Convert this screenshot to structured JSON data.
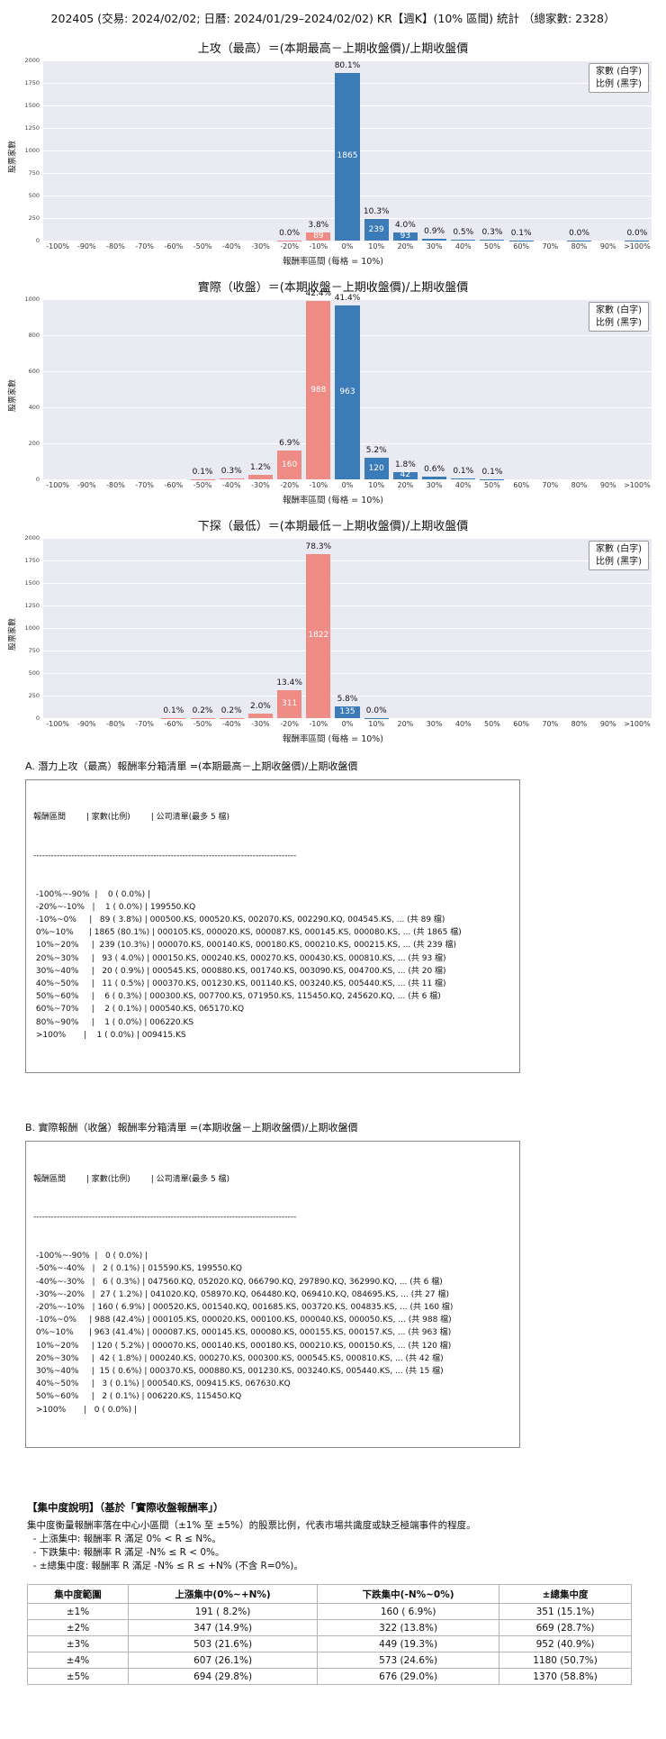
{
  "page_title": "202405 (交易: 2024/02/02; 日曆: 2024/01/29–2024/02/02) KR【週K】(10% 區間) 統計 （總家數: 2328）",
  "colors": {
    "bar_negative": "#ee8b84",
    "bar_positive": "#3b7cb8",
    "plot_bg": "#eaeaf2",
    "grid": "#ffffff"
  },
  "chart_data": [
    {
      "type": "bar",
      "title": "上攻（最高）＝(本期最高－上期收盤價)/上期收盤價",
      "ylabel": "股票家數",
      "xlabel": "報酬率區間 (每格 = 10%)",
      "legend": [
        "家數 (白字)",
        "比例 (黑字)"
      ],
      "ymax": 2000,
      "yticks": [
        0,
        250,
        500,
        750,
        1000,
        1250,
        1500,
        1750,
        2000
      ],
      "x_labels": [
        "-100%",
        "-90%",
        "-80%",
        "-70%",
        "-60%",
        "-50%",
        "-40%",
        "-30%",
        "-20%",
        "-10%",
        "0%",
        "10%",
        "20%",
        "30%",
        "40%",
        "50%",
        "60%",
        "70%",
        "80%",
        "90%",
        ">100%"
      ],
      "counts": [
        0,
        0,
        0,
        0,
        0,
        0,
        0,
        0,
        1,
        89,
        1865,
        239,
        93,
        20,
        11,
        6,
        2,
        0,
        1,
        0,
        1
      ],
      "pcts": [
        "",
        "",
        "",
        "",
        "",
        "",
        "",
        "",
        "0.0%",
        "3.8%",
        "80.1%",
        "10.3%",
        "4.0%",
        "0.9%",
        "0.5%",
        "0.3%",
        "0.1%",
        "",
        "0.0%",
        "",
        "0.0%"
      ]
    },
    {
      "type": "bar",
      "title": "實際（收盤）＝(本期收盤－上期收盤價)/上期收盤價",
      "ylabel": "股票家數",
      "xlabel": "報酬率區間 (每格 = 10%)",
      "legend": [
        "家數 (白字)",
        "比例 (黑字)"
      ],
      "ymax": 1000,
      "yticks": [
        0,
        200,
        400,
        600,
        800,
        1000
      ],
      "x_labels": [
        "-100%",
        "-90%",
        "-80%",
        "-70%",
        "-60%",
        "-50%",
        "-40%",
        "-30%",
        "-20%",
        "-10%",
        "0%",
        "10%",
        "20%",
        "30%",
        "40%",
        "50%",
        "60%",
        "70%",
        "80%",
        "90%",
        ">100%"
      ],
      "counts": [
        0,
        0,
        0,
        0,
        0,
        2,
        6,
        27,
        160,
        988,
        963,
        120,
        42,
        15,
        3,
        2,
        0,
        0,
        0,
        0,
        0
      ],
      "pcts": [
        "",
        "",
        "",
        "",
        "",
        "0.1%",
        "0.3%",
        "1.2%",
        "6.9%",
        "42.4%",
        "41.4%",
        "5.2%",
        "1.8%",
        "0.6%",
        "0.1%",
        "0.1%",
        "",
        "",
        "",
        "",
        ""
      ]
    },
    {
      "type": "bar",
      "title": "下探（最低）＝(本期最低－上期收盤價)/上期收盤價",
      "ylabel": "股票家數",
      "xlabel": "報酬率區間 (每格 = 10%)",
      "legend": [
        "家數 (白字)",
        "比例 (黑字)"
      ],
      "ymax": 2000,
      "yticks": [
        0,
        250,
        500,
        750,
        1000,
        1250,
        1500,
        1750,
        2000
      ],
      "x_labels": [
        "-100%",
        "-90%",
        "-80%",
        "-70%",
        "-60%",
        "-50%",
        "-40%",
        "-30%",
        "-20%",
        "-10%",
        "0%",
        "10%",
        "20%",
        "30%",
        "40%",
        "50%",
        "60%",
        "70%",
        "80%",
        "90%",
        ">100%"
      ],
      "counts": [
        0,
        0,
        0,
        0,
        2,
        4,
        5,
        47,
        311,
        1822,
        135,
        1,
        0,
        0,
        0,
        0,
        0,
        0,
        0,
        0,
        0
      ],
      "pcts": [
        "",
        "",
        "",
        "",
        "0.1%",
        "0.2%",
        "0.2%",
        "2.0%",
        "13.4%",
        "78.3%",
        "5.8%",
        "0.0%",
        "",
        "",
        "",
        "",
        "",
        "",
        "",
        "",
        ""
      ]
    }
  ],
  "list_a": {
    "title": "A. 潛力上攻（最高）報酬率分箱清單 =(本期最高－上期收盤價)/上期收盤價",
    "header": "報酬區間        | 家數(比例)        | 公司清單(最多 5 檔)",
    "divider": "------------------------------------------------------------------------------------------",
    "rows": [
      " -100%~-90%  |    0 ( 0.0%) | ",
      " -20%~-10%   |    1 ( 0.0%) | 199550.KQ",
      " -10%~0%     |   89 ( 3.8%) | 000500.KS, 000520.KS, 002070.KS, 002290.KQ, 004545.KS, ... (共 89 檔)",
      " 0%~10%      | 1865 (80.1%) | 000105.KS, 000020.KS, 000087.KS, 000145.KS, 000080.KS, ... (共 1865 檔)",
      " 10%~20%     |  239 (10.3%) | 000070.KS, 000140.KS, 000180.KS, 000210.KS, 000215.KS, ... (共 239 檔)",
      " 20%~30%     |   93 ( 4.0%) | 000150.KS, 000240.KS, 000270.KS, 000430.KS, 000810.KS, ... (共 93 檔)",
      " 30%~40%     |   20 ( 0.9%) | 000545.KS, 000880.KS, 001740.KS, 003090.KS, 004700.KS, ... (共 20 檔)",
      " 40%~50%     |   11 ( 0.5%) | 000370.KS, 001230.KS, 001140.KS, 003240.KS, 005440.KS, ... (共 11 檔)",
      " 50%~60%     |    6 ( 0.3%) | 000300.KS, 007700.KS, 071950.KS, 115450.KQ, 245620.KQ, ... (共 6 檔)",
      " 60%~70%     |    2 ( 0.1%) | 000540.KS, 065170.KQ",
      " 80%~90%     |    1 ( 0.0%) | 006220.KS",
      " >100%       |    1 ( 0.0%) | 009415.KS"
    ]
  },
  "list_b": {
    "title": "B. 實際報酬（收盤）報酬率分箱清單 =(本期收盤－上期收盤價)/上期收盤價",
    "header": "報酬區間        | 家數(比例)        | 公司清單(最多 5 檔)",
    "divider": "------------------------------------------------------------------------------------------",
    "rows": [
      " -100%~-90%  |   0 ( 0.0%) | ",
      " -50%~-40%   |   2 ( 0.1%) | 015590.KS, 199550.KQ",
      " -40%~-30%   |   6 ( 0.3%) | 047560.KQ, 052020.KQ, 066790.KQ, 297890.KQ, 362990.KQ, ... (共 6 檔)",
      " -30%~-20%   |  27 ( 1.2%) | 041020.KQ, 058970.KQ, 064480.KQ, 069410.KQ, 084695.KS, ... (共 27 檔)",
      " -20%~-10%   | 160 ( 6.9%) | 000520.KS, 001540.KQ, 001685.KS, 003720.KS, 004835.KS, ... (共 160 檔)",
      " -10%~0%     | 988 (42.4%) | 000105.KS, 000020.KS, 000100.KS, 000040.KS, 000050.KS, ... (共 988 檔)",
      " 0%~10%      | 963 (41.4%) | 000087.KS, 000145.KS, 000080.KS, 000155.KS, 000157.KS, ... (共 963 檔)",
      " 10%~20%     | 120 ( 5.2%) | 000070.KS, 000140.KS, 000180.KS, 000210.KS, 000150.KS, ... (共 120 檔)",
      " 20%~30%     |  42 ( 1.8%) | 000240.KS, 000270.KS, 000300.KS, 000545.KS, 000810.KS, ... (共 42 檔)",
      " 30%~40%     |  15 ( 0.6%) | 000370.KS, 000880.KS, 001230.KS, 003240.KS, 005440.KS, ... (共 15 檔)",
      " 40%~50%     |   3 ( 0.1%) | 000540.KS, 009415.KS, 067630.KQ",
      " 50%~60%     |   2 ( 0.1%) | 006220.KS, 115450.KQ",
      " >100%       |   0 ( 0.0%) | "
    ]
  },
  "concentration": {
    "heading": "【集中度說明】（基於「實際收盤報酬率」）",
    "desc_lines": [
      "集中度衡量報酬率落在中心小區間（±1% 至 ±5%）的股票比例，代表市場共識度或缺乏極端事件的程度。",
      "  - 上漲集中: 報酬率 R 滿足 0% < R ≤ N%。",
      "  - 下跌集中: 報酬率 R 滿足 -N% ≤ R < 0%。",
      "  - ±總集中度: 報酬率 R 滿足 -N% ≤ R ≤ +N% (不含 R=0%)。"
    ],
    "table": {
      "headers": [
        "集中度範圍",
        "上漲集中(0%~+N%)",
        "下跌集中(-N%~0%)",
        "±總集中度"
      ],
      "rows": [
        [
          "±1%",
          "191 ( 8.2%)",
          "160 ( 6.9%)",
          "351 (15.1%)"
        ],
        [
          "±2%",
          "347 (14.9%)",
          "322 (13.8%)",
          "669 (28.7%)"
        ],
        [
          "±3%",
          "503 (21.6%)",
          "449 (19.3%)",
          "952 (40.9%)"
        ],
        [
          "±4%",
          "607 (26.1%)",
          "573 (24.6%)",
          "1180 (50.7%)"
        ],
        [
          "±5%",
          "694 (29.8%)",
          "676 (29.0%)",
          "1370 (58.8%)"
        ]
      ]
    }
  }
}
